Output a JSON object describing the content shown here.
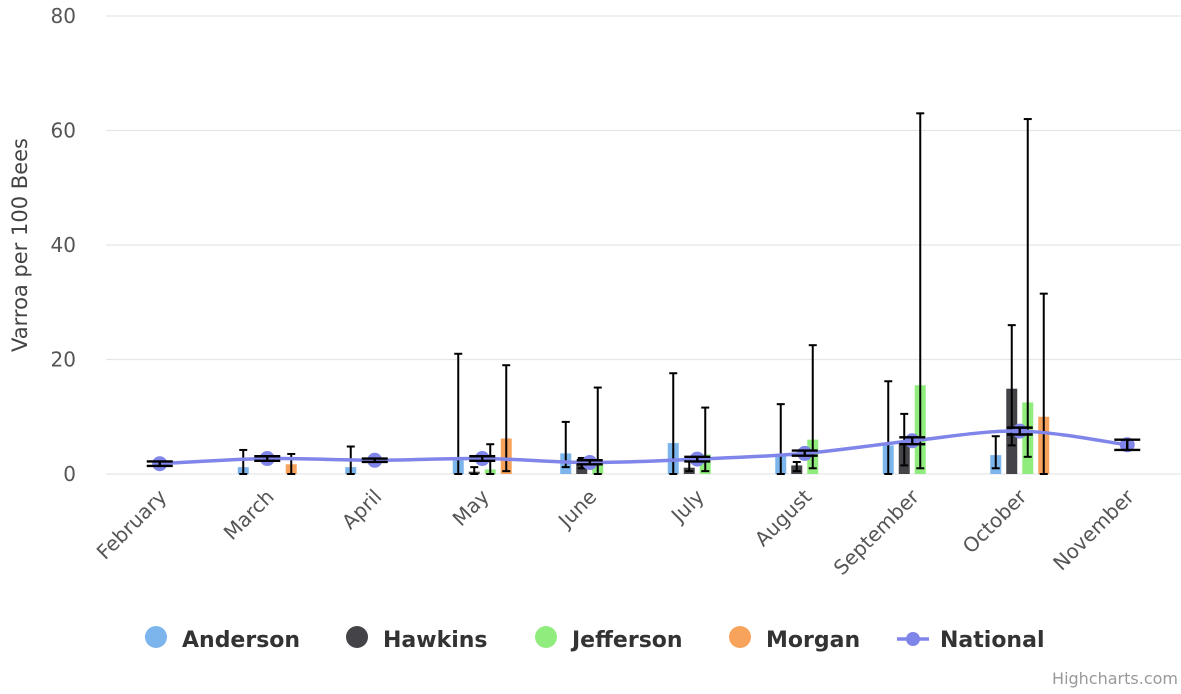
{
  "chart_data": {
    "type": "bar",
    "ylabel": "Varroa per 100 Bees",
    "ylim": [
      0,
      80
    ],
    "yticks": [
      0,
      20,
      40,
      60,
      80
    ],
    "grid": true,
    "legend_position": "bottom",
    "categories": [
      "February",
      "March",
      "April",
      "May",
      "June",
      "July",
      "August",
      "September",
      "October",
      "November"
    ],
    "series": [
      {
        "name": "Anderson",
        "type": "column",
        "color": "#7cb5ec",
        "values": [
          null,
          1.2,
          1.2,
          2.4,
          3.6,
          5.4,
          3.4,
          5.0,
          3.3,
          null
        ],
        "error": [
          null,
          [
            0,
            4.2
          ],
          [
            0,
            4.8
          ],
          [
            0,
            21
          ],
          [
            1.2,
            9.1
          ],
          [
            0,
            17.6
          ],
          [
            0,
            12.2
          ],
          [
            0,
            16.2
          ],
          [
            1.0,
            6.6
          ],
          null
        ]
      },
      {
        "name": "Hawkins",
        "type": "column",
        "color": "#434348",
        "values": [
          null,
          null,
          null,
          0.4,
          2.0,
          1.1,
          1.5,
          5.2,
          14.9,
          null
        ],
        "error": [
          null,
          null,
          null,
          [
            0,
            1.2
          ],
          [
            1.0,
            2.8
          ],
          [
            0.5,
            2.8
          ],
          [
            0.5,
            2.1
          ],
          [
            1.5,
            10.5
          ],
          [
            5.0,
            26.0
          ],
          null
        ]
      },
      {
        "name": "Jefferson",
        "type": "column",
        "color": "#90ed7d",
        "values": [
          null,
          null,
          null,
          0.8,
          2.0,
          3.4,
          6.0,
          15.5,
          12.5,
          null
        ],
        "error": [
          null,
          null,
          null,
          [
            0,
            5.2
          ],
          [
            0,
            15.1
          ],
          [
            0.5,
            11.6
          ],
          [
            1.0,
            22.5
          ],
          [
            1.0,
            63.0
          ],
          [
            3.0,
            62.0
          ],
          null
        ]
      },
      {
        "name": "Morgan",
        "type": "column",
        "color": "#f7a35c",
        "values": [
          null,
          1.7,
          null,
          6.2,
          null,
          null,
          null,
          null,
          10.0,
          null
        ],
        "error": [
          null,
          [
            0,
            3.5
          ],
          null,
          [
            0.5,
            19.0
          ],
          null,
          null,
          null,
          null,
          [
            0,
            31.5
          ],
          null
        ]
      },
      {
        "name": "National",
        "type": "spline",
        "color": "#8085e9",
        "values": [
          1.8,
          2.7,
          2.4,
          2.7,
          2.0,
          2.6,
          3.6,
          5.8,
          7.5,
          5.1
        ],
        "error": [
          [
            1.4,
            2.2
          ],
          [
            2.3,
            3.1
          ],
          [
            2.1,
            2.7
          ],
          [
            2.3,
            3.1
          ],
          [
            1.7,
            2.4
          ],
          [
            2.2,
            3.0
          ],
          [
            3.2,
            4.1
          ],
          [
            5.2,
            6.4
          ],
          [
            6.9,
            8.1
          ],
          [
            4.2,
            6.0
          ]
        ]
      }
    ]
  },
  "credits": "Highcharts.com"
}
